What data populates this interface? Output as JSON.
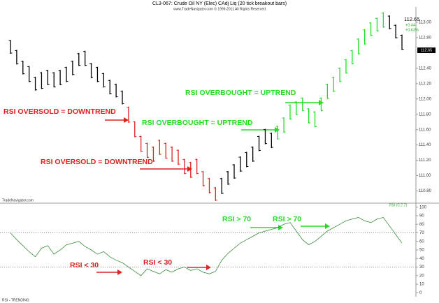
{
  "chart_data": {
    "type": "ohlc",
    "title": "CL3-067:  Crude Oil NY (Elec) CAdj Liq  (20 tick breakout bars)",
    "subtitle": "www.TradeNavigator.com © 1999-2011 All Rights Reserved",
    "source_label": "TradeNavigator.com",
    "last_price": "112.65",
    "change": "+0.44",
    "change_pct": "+0.63%",
    "price_tag": "112.65",
    "footer": "RSI - TRENDING",
    "annotations": [
      "RSI OVERSOLD = DOWNTREND",
      "RSI OVERSOLD = DOWNTREND",
      "RSI OVERBOUGHT = UPTREND",
      "RSI OVERBOUGHT = UPTREND",
      "RSI < 30",
      "RSI < 30",
      "RSI > 70",
      "RSI > 70"
    ],
    "ylim": [
      110.65,
      113.2
    ],
    "yticks": [
      {
        "value": 113,
        "label": "113.00"
      },
      {
        "value": 112.8,
        "label": "112.80"
      },
      {
        "value": 112.4,
        "label": "112.40"
      },
      {
        "value": 112.2,
        "label": "112.20"
      },
      {
        "value": 112,
        "label": "112.00"
      },
      {
        "value": 111.8,
        "label": "111.80"
      },
      {
        "value": 111.6,
        "label": "111.60"
      },
      {
        "value": 111.4,
        "label": "111.40"
      },
      {
        "value": 111.2,
        "label": "111.20"
      },
      {
        "value": 111,
        "label": "111.00"
      },
      {
        "value": 110.8,
        "label": "110.80"
      }
    ],
    "bars": {
      "high": [
        112.77,
        112.64,
        112.5,
        112.43,
        112.29,
        112.35,
        112.38,
        112.35,
        112.38,
        112.42,
        112.5,
        112.6,
        112.63,
        112.47,
        112.42,
        112.34,
        112.25,
        112.2,
        112.11,
        111.9,
        111.71,
        111.52,
        111.43,
        111.38,
        111.47,
        111.43,
        111.38,
        111.34,
        111.22,
        111.18,
        111.22,
        111.06,
        110.97,
        110.85,
        110.97,
        111.06,
        111.15,
        111.25,
        111.31,
        111.38,
        111.52,
        111.61,
        111.56,
        111.65,
        111.76,
        111.93,
        111.97,
        112.02,
        111.88,
        111.84,
        112.02,
        112.2,
        112.29,
        112.41,
        112.52,
        112.64,
        112.79,
        112.91,
        113.0,
        113.06,
        113.13,
        113.09,
        112.97,
        112.84
      ],
      "low": [
        112.59,
        112.45,
        112.32,
        112.22,
        112.11,
        112.13,
        112.18,
        112.15,
        112.18,
        112.22,
        112.31,
        112.43,
        112.43,
        112.27,
        112.22,
        112.15,
        112.06,
        112.02,
        111.93,
        111.69,
        111.5,
        111.31,
        111.23,
        111.18,
        111.27,
        111.22,
        111.18,
        111.14,
        111.02,
        110.97,
        111.02,
        110.86,
        110.77,
        110.67,
        110.76,
        110.88,
        110.96,
        111.05,
        111.11,
        111.18,
        111.32,
        111.41,
        111.36,
        111.47,
        111.56,
        111.73,
        111.79,
        111.84,
        111.68,
        111.63,
        111.84,
        112.0,
        112.09,
        112.22,
        112.33,
        112.45,
        112.58,
        112.71,
        112.82,
        112.88,
        112.93,
        112.91,
        112.79,
        112.64
      ],
      "colors": [
        "#000",
        "#000",
        "#000",
        "#000",
        "#000",
        "#000",
        "#000",
        "#000",
        "#000",
        "#000",
        "#000",
        "#000",
        "#000",
        "#000",
        "#000",
        "#000",
        "#000",
        "#000",
        "#000",
        "#e02020",
        "#e02020",
        "#e02020",
        "#e02020",
        "#e02020",
        "#e02020",
        "#e02020",
        "#e02020",
        "#e02020",
        "#e02020",
        "#e02020",
        "#e02020",
        "#e02020",
        "#e02020",
        "#e02020",
        "#000",
        "#000",
        "#000",
        "#000",
        "#000",
        "#000",
        "#000",
        "#000",
        "#000",
        "#22dd22",
        "#22dd22",
        "#22dd22",
        "#22dd22",
        "#22dd22",
        "#22dd22",
        "#22dd22",
        "#22dd22",
        "#22dd22",
        "#22dd22",
        "#22dd22",
        "#22dd22",
        "#22dd22",
        "#22dd22",
        "#22dd22",
        "#22dd22",
        "#22dd22",
        "#22dd22",
        "#000",
        "#000",
        "#000"
      ]
    },
    "rsi": {
      "name": "RSI (C,7,7)",
      "color": "#3a8a3a",
      "values": [
        70,
        62,
        55,
        48,
        42,
        52,
        55,
        45,
        50,
        56,
        58,
        60,
        54,
        50,
        45,
        48,
        42,
        38,
        35,
        30,
        25,
        20,
        28,
        25,
        22,
        27,
        24,
        28,
        30,
        26,
        28,
        24,
        22,
        25,
        38,
        46,
        52,
        58,
        62,
        66,
        70,
        72,
        74,
        76,
        80,
        82,
        72,
        62,
        56,
        60,
        66,
        72,
        76,
        80,
        84,
        86,
        88,
        84,
        82,
        86,
        88,
        78,
        68,
        58
      ],
      "ylim": [
        -3,
        103
      ],
      "yticks": [
        100,
        90,
        80,
        70,
        60,
        50,
        40,
        30,
        20,
        10,
        0
      ],
      "levels": [
        70,
        30
      ]
    }
  }
}
